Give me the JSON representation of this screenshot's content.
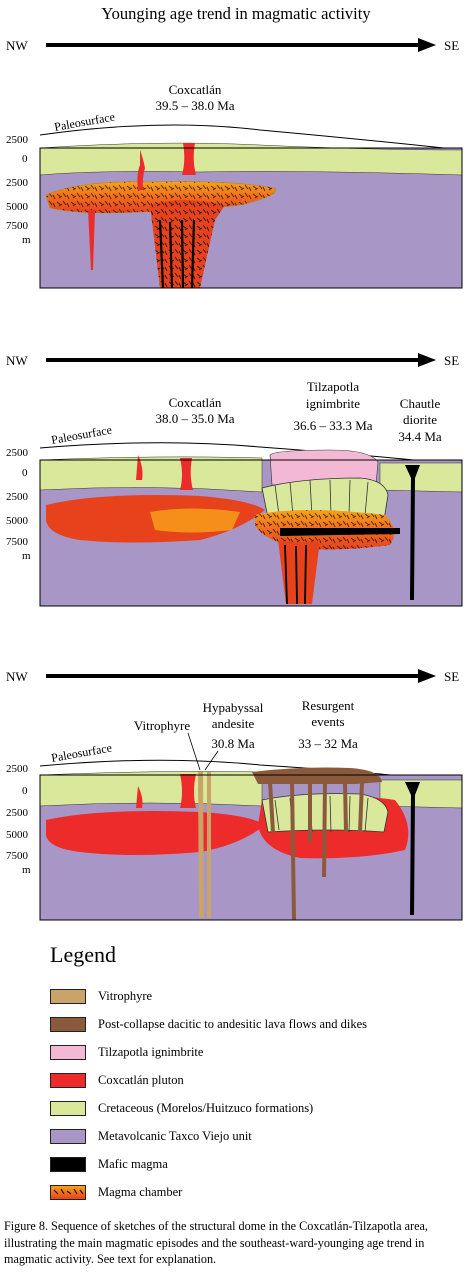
{
  "title": "Younging age trend in magmatic activity",
  "directions": {
    "nw": "NW",
    "se": "SE"
  },
  "axis": {
    "ticks": [
      "2500",
      "0",
      "2500",
      "5000",
      "7500"
    ],
    "unit": "m"
  },
  "panels": [
    {
      "surface_label": "Paleosurface",
      "labels": {
        "coxcatlan_name": "Coxcatlán",
        "coxcatlan_age": "39.5 – 38.0 Ma"
      }
    },
    {
      "surface_label": "Paleosurface",
      "labels": {
        "coxcatlan_name": "Coxcatlán",
        "coxcatlan_age": "38.0 – 35.0 Ma",
        "tilzapotla_name1": "Tilzapotla",
        "tilzapotla_name2": "ignimbrite",
        "tilzapotla_age": "36.6 – 33.3 Ma",
        "chautle_name1": "Chautle",
        "chautle_name2": "diorite",
        "chautle_age": "34.4 Ma"
      }
    },
    {
      "surface_label": "Paleosurface",
      "labels": {
        "vitrophyre": "Vitrophyre",
        "hypabyssal1": "Hypabyssal",
        "hypabyssal2": "andesite",
        "hypabyssal_age": "30.8 Ma",
        "resurgent1": "Resurgent",
        "resurgent2": "events",
        "resurgent_age": "33 – 32 Ma"
      }
    }
  ],
  "legend": {
    "title": "Legend",
    "items": [
      {
        "label": "Vitrophyre",
        "color": "#c9a46a"
      },
      {
        "label": "Post-collapse dacitic to andesitic lava flows and dikes",
        "color": "#8b5a3c"
      },
      {
        "label": "Tilzapotla ignimbrite",
        "color": "#f2b8d4"
      },
      {
        "label": "Coxcatlán pluton",
        "color": "#ee2b2b"
      },
      {
        "label": "Cretaceous (Morelos/Huitzuco formations)",
        "color": "#d9e89a"
      },
      {
        "label": "Metavolcanic Taxco Viejo unit",
        "color": "#a896c6"
      },
      {
        "label": "Mafic magma",
        "color": "#000000"
      },
      {
        "label": "Magma chamber",
        "color": "#f26b1d"
      }
    ]
  },
  "caption": "Figure 8. Sequence of sketches of the structural dome in the Coxcatlán-Tilzapotla area, illustrating the main magmatic episodes and the southeast-ward-younging age trend in magmatic activity. See text for explanation."
}
